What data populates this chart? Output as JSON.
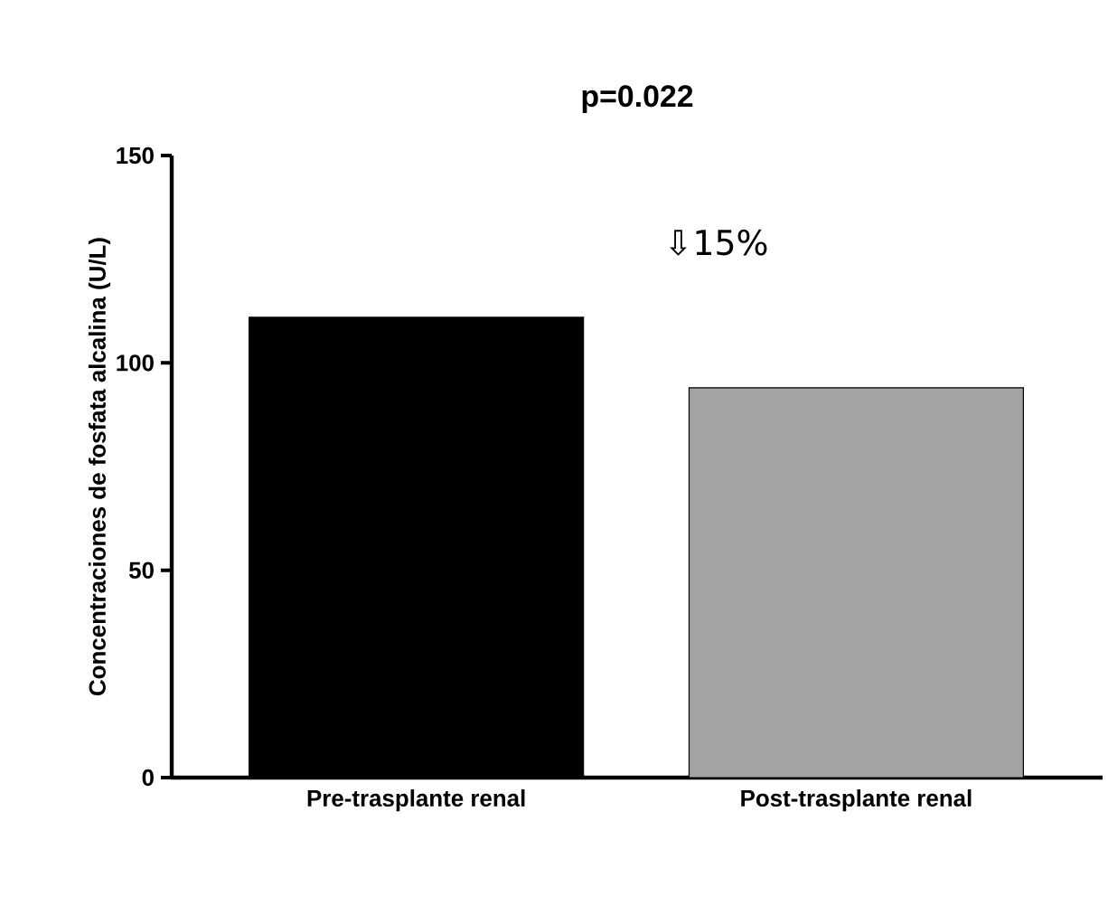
{
  "chart_data": {
    "type": "bar",
    "title": "p=0.022",
    "ylabel": "Concentraciones de fosfata alcalina (U/L)",
    "categories": [
      "Pre-trasplante renal",
      "Post-trasplante renal"
    ],
    "values": [
      111,
      94
    ],
    "colors": [
      "#000000",
      "#a3a3a6"
    ],
    "ylim": [
      0,
      150
    ],
    "yticks": [
      0,
      50,
      100,
      150
    ],
    "annotations": [
      "⇩15%"
    ]
  }
}
